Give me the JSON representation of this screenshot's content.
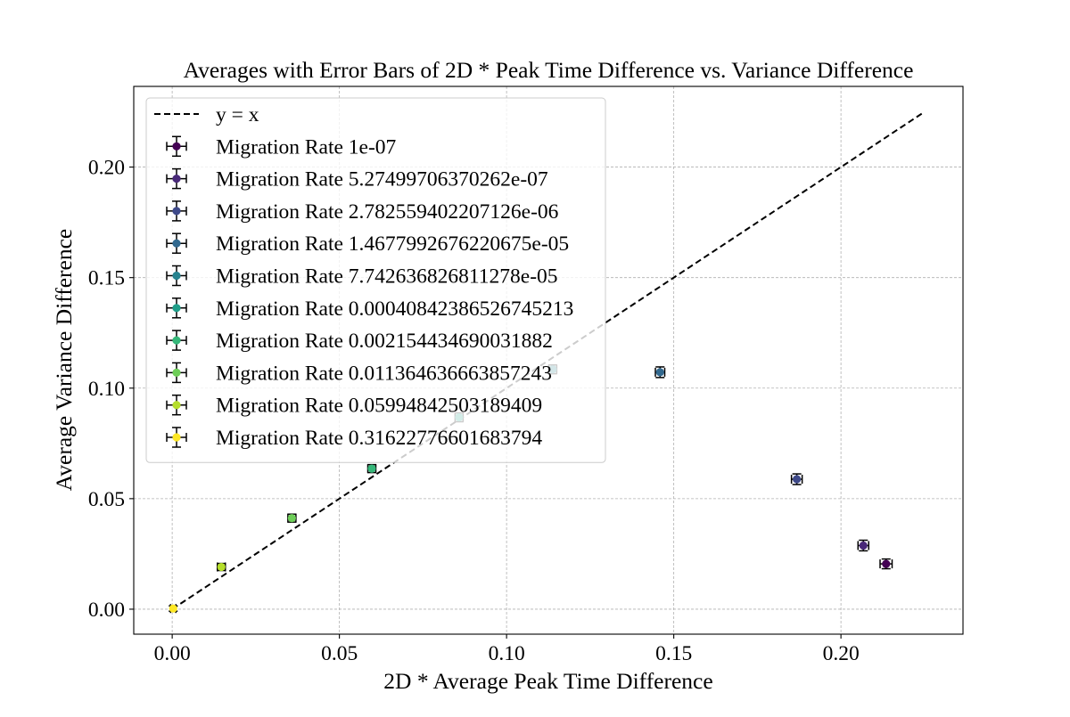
{
  "chart_data": {
    "type": "scatter",
    "title": "Averages with Error Bars of 2D * Peak Time Difference vs. Variance Difference",
    "xlabel": "2D * Average Peak Time Difference",
    "ylabel": "Average Variance Difference",
    "xlim": [
      -0.0115,
      0.2365
    ],
    "ylim": [
      -0.0113,
      0.2365
    ],
    "xticks": [
      "0.00",
      "0.05",
      "0.10",
      "0.15",
      "0.20"
    ],
    "xtick_values": [
      0.0,
      0.05,
      0.1,
      0.15,
      0.2
    ],
    "yticks": [
      "0.00",
      "0.05",
      "0.10",
      "0.15",
      "0.20"
    ],
    "ytick_values": [
      0.0,
      0.05,
      0.1,
      0.15,
      0.2
    ],
    "grid": true,
    "legend_position": "upper-left",
    "reference_line": {
      "label": "y = x",
      "x": [
        0.0,
        0.225
      ],
      "y": [
        0.0,
        0.225
      ],
      "style": "dashed",
      "color": "#000000"
    },
    "series": [
      {
        "name": "Migration Rate 1e-07",
        "color": "#440154",
        "x": 0.2135,
        "y": 0.0205,
        "xerr": 0.0018,
        "yerr": 0.0022
      },
      {
        "name": "Migration Rate 5.27499706370262e-07",
        "color": "#482878",
        "x": 0.2067,
        "y": 0.0288,
        "xerr": 0.0016,
        "yerr": 0.0024
      },
      {
        "name": "Migration Rate 2.782559402207126e-06",
        "color": "#3e4989",
        "x": 0.1868,
        "y": 0.0588,
        "xerr": 0.0016,
        "yerr": 0.0024
      },
      {
        "name": "Migration Rate 1.4677992676220675e-05",
        "color": "#31688e",
        "x": 0.1459,
        "y": 0.1072,
        "xerr": 0.0014,
        "yerr": 0.0024
      },
      {
        "name": "Migration Rate 7.742636826811278e-05",
        "color": "#26828e",
        "x": 0.1138,
        "y": 0.1085,
        "xerr": 0.0012,
        "yerr": 0.002
      },
      {
        "name": "Migration Rate 0.00040842386526745213",
        "color": "#1f9e89",
        "x": 0.0858,
        "y": 0.0868,
        "xerr": 0.0012,
        "yerr": 0.002
      },
      {
        "name": "Migration Rate 0.002154434690031882",
        "color": "#35b779",
        "x": 0.0597,
        "y": 0.0636,
        "xerr": 0.0012,
        "yerr": 0.0018
      },
      {
        "name": "Migration Rate 0.011364636663857243",
        "color": "#6ece58",
        "x": 0.0358,
        "y": 0.0412,
        "xerr": 0.0012,
        "yerr": 0.0018
      },
      {
        "name": "Migration Rate 0.05994842503189409",
        "color": "#b5de2b",
        "x": 0.0147,
        "y": 0.0191,
        "xerr": 0.0012,
        "yerr": 0.0016
      },
      {
        "name": "Migration Rate 0.31622776601683794",
        "color": "#fde725",
        "x": 0.0003,
        "y": 0.0003,
        "xerr": 0.0008,
        "yerr": 0.0012
      }
    ]
  }
}
